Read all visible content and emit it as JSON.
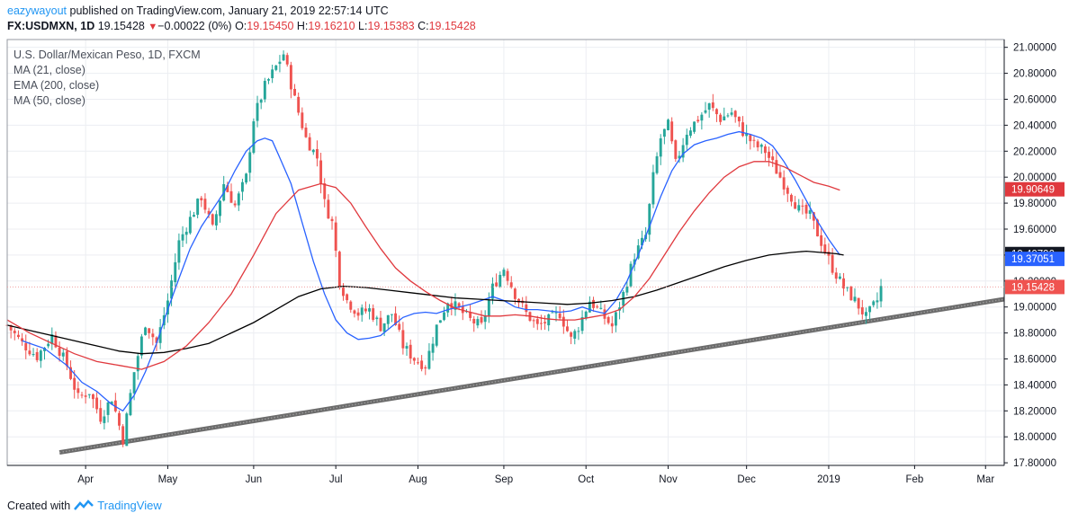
{
  "header": {
    "author": "eazywayout",
    "published_text": "published on TradingView.com, January 21, 2019 22:57:14 UTC",
    "symbol": "FX:USDMXN, 1D",
    "last": "19.15428",
    "change": "−0.00022 (0%)",
    "open_label": "O:",
    "open": "19.15450",
    "high_label": "H:",
    "high": "19.16210",
    "low_label": "L:",
    "low": "19.15383",
    "close_label": "C:",
    "close": "19.15428"
  },
  "legend": {
    "title": "U.S. Dollar/Mexican Peso, 1D, FXCM",
    "items": [
      "MA (21, close)",
      "EMA (200, close)",
      "MA (50, close)"
    ]
  },
  "footer": {
    "created_with": "Created with",
    "brand": "TradingView"
  },
  "chart_data": {
    "type": "candlestick",
    "y_axis": {
      "ticks": [
        17.8,
        18.0,
        18.2,
        18.4,
        18.6,
        18.8,
        19.0,
        19.2,
        19.4,
        19.6,
        19.8,
        20.0,
        20.2,
        20.4,
        20.6,
        20.8,
        21.0
      ],
      "tick_labels": [
        "17.80000",
        "18.00000",
        "18.20000",
        "18.40000",
        "18.60000",
        "18.80000",
        "19.00000",
        "19.20000",
        "19.40000",
        "19.60000",
        "19.80000",
        "20.00000",
        "20.20000",
        "20.40000",
        "20.60000",
        "20.80000",
        "21.00000"
      ],
      "range": [
        17.78,
        21.06
      ]
    },
    "x_axis": {
      "labels": [
        "Apr",
        "May",
        "Jun",
        "Jul",
        "Aug",
        "Sep",
        "Oct",
        "Nov",
        "Dec",
        "2019",
        "Feb",
        "Mar"
      ],
      "label_day_index": [
        21,
        43,
        66,
        88,
        110,
        133,
        155,
        177,
        198,
        220,
        243,
        262
      ],
      "range_days": [
        0,
        267
      ]
    },
    "price_labels": [
      {
        "value": 19.90649,
        "text": "19.90649",
        "color": "#e0393e"
      },
      {
        "value": 19.4079,
        "text": "19.40790",
        "color": "#131722"
      },
      {
        "value": 19.37051,
        "text": "19.37051",
        "color": "#2962ff"
      },
      {
        "value": 19.15428,
        "text": "19.15428",
        "color": "#ef5350"
      }
    ],
    "trendline": {
      "start": {
        "day": 14,
        "value": 17.88
      },
      "end": {
        "day": 267,
        "value": 19.06
      },
      "color": "#6b6b6b"
    },
    "close_anchors": [
      [
        0,
        18.86
      ],
      [
        4,
        18.72
      ],
      [
        8,
        18.62
      ],
      [
        12,
        18.78
      ],
      [
        16,
        18.55
      ],
      [
        19,
        18.3
      ],
      [
        22,
        18.35
      ],
      [
        25,
        18.15
      ],
      [
        28,
        18.3
      ],
      [
        31,
        17.98
      ],
      [
        34,
        18.5
      ],
      [
        37,
        18.88
      ],
      [
        40,
        18.72
      ],
      [
        43,
        19.05
      ],
      [
        46,
        19.5
      ],
      [
        49,
        19.68
      ],
      [
        52,
        19.85
      ],
      [
        55,
        19.6
      ],
      [
        58,
        19.95
      ],
      [
        61,
        19.78
      ],
      [
        64,
        20.0
      ],
      [
        66,
        20.45
      ],
      [
        69,
        20.7
      ],
      [
        72,
        20.85
      ],
      [
        74,
        20.95
      ],
      [
        77,
        20.6
      ],
      [
        80,
        20.3
      ],
      [
        83,
        20.15
      ],
      [
        85,
        19.8
      ],
      [
        87,
        19.65
      ],
      [
        89,
        19.2
      ],
      [
        91,
        19.05
      ],
      [
        94,
        18.95
      ],
      [
        97,
        18.98
      ],
      [
        100,
        18.85
      ],
      [
        103,
        18.95
      ],
      [
        106,
        18.7
      ],
      [
        109,
        18.6
      ],
      [
        112,
        18.55
      ],
      [
        115,
        18.85
      ],
      [
        118,
        19.05
      ],
      [
        121,
        18.98
      ],
      [
        124,
        18.9
      ],
      [
        127,
        18.85
      ],
      [
        130,
        19.15
      ],
      [
        133,
        19.3
      ],
      [
        136,
        19.1
      ],
      [
        139,
        18.95
      ],
      [
        142,
        18.85
      ],
      [
        145,
        18.9
      ],
      [
        148,
        18.95
      ],
      [
        151,
        18.75
      ],
      [
        153,
        18.85
      ],
      [
        156,
        19.05
      ],
      [
        159,
        18.95
      ],
      [
        162,
        18.85
      ],
      [
        165,
        19.1
      ],
      [
        168,
        19.4
      ],
      [
        171,
        19.55
      ],
      [
        173,
        20.0
      ],
      [
        175,
        20.3
      ],
      [
        177,
        20.4
      ],
      [
        179,
        20.1
      ],
      [
        182,
        20.35
      ],
      [
        185,
        20.45
      ],
      [
        188,
        20.55
      ],
      [
        191,
        20.45
      ],
      [
        194,
        20.5
      ],
      [
        197,
        20.35
      ],
      [
        200,
        20.25
      ],
      [
        203,
        20.2
      ],
      [
        206,
        20.05
      ],
      [
        209,
        19.9
      ],
      [
        212,
        19.75
      ],
      [
        215,
        19.7
      ],
      [
        218,
        19.5
      ],
      [
        221,
        19.3
      ],
      [
        224,
        19.15
      ],
      [
        227,
        19.05
      ],
      [
        230,
        18.92
      ],
      [
        233,
        19.05
      ],
      [
        234,
        19.15
      ]
    ],
    "series": [
      {
        "name": "MA (21, close)",
        "color": "#2962ff",
        "points": [
          [
            4,
            18.74
          ],
          [
            10,
            18.68
          ],
          [
            16,
            18.55
          ],
          [
            20,
            18.42
          ],
          [
            24,
            18.35
          ],
          [
            28,
            18.25
          ],
          [
            31,
            18.2
          ],
          [
            34,
            18.32
          ],
          [
            37,
            18.5
          ],
          [
            40,
            18.72
          ],
          [
            43,
            18.98
          ],
          [
            46,
            19.22
          ],
          [
            49,
            19.45
          ],
          [
            52,
            19.62
          ],
          [
            55,
            19.75
          ],
          [
            58,
            19.88
          ],
          [
            61,
            20.05
          ],
          [
            64,
            20.2
          ],
          [
            67,
            20.28
          ],
          [
            69,
            20.3
          ],
          [
            71,
            20.28
          ],
          [
            73,
            20.15
          ],
          [
            76,
            19.95
          ],
          [
            79,
            19.65
          ],
          [
            82,
            19.35
          ],
          [
            85,
            19.1
          ],
          [
            88,
            18.9
          ],
          [
            91,
            18.8
          ],
          [
            94,
            18.75
          ],
          [
            97,
            18.76
          ],
          [
            100,
            18.78
          ],
          [
            103,
            18.85
          ],
          [
            106,
            18.92
          ],
          [
            109,
            18.95
          ],
          [
            112,
            18.96
          ],
          [
            115,
            18.95
          ],
          [
            118,
            18.98
          ],
          [
            121,
            19.0
          ],
          [
            124,
            19.02
          ],
          [
            127,
            19.05
          ],
          [
            130,
            19.08
          ],
          [
            133,
            19.05
          ],
          [
            136,
            19.0
          ],
          [
            139,
            18.98
          ],
          [
            142,
            18.98
          ],
          [
            145,
            18.97
          ],
          [
            148,
            18.96
          ],
          [
            151,
            18.97
          ],
          [
            154,
            19.0
          ],
          [
            157,
            18.97
          ],
          [
            160,
            18.95
          ],
          [
            163,
            19.05
          ],
          [
            166,
            19.2
          ],
          [
            169,
            19.4
          ],
          [
            172,
            19.62
          ],
          [
            175,
            19.85
          ],
          [
            178,
            20.05
          ],
          [
            181,
            20.18
          ],
          [
            184,
            20.25
          ],
          [
            187,
            20.28
          ],
          [
            190,
            20.3
          ],
          [
            193,
            20.33
          ],
          [
            196,
            20.35
          ],
          [
            199,
            20.33
          ],
          [
            202,
            20.3
          ],
          [
            205,
            20.24
          ],
          [
            208,
            20.12
          ],
          [
            211,
            19.98
          ],
          [
            214,
            19.82
          ],
          [
            217,
            19.66
          ],
          [
            220,
            19.52
          ],
          [
            223,
            19.4
          ]
        ]
      },
      {
        "name": "EMA (200, close)",
        "color": "#000000",
        "points": [
          [
            0,
            18.86
          ],
          [
            6,
            18.82
          ],
          [
            12,
            18.78
          ],
          [
            18,
            18.74
          ],
          [
            24,
            18.7
          ],
          [
            30,
            18.66
          ],
          [
            36,
            18.64
          ],
          [
            42,
            18.65
          ],
          [
            48,
            18.68
          ],
          [
            54,
            18.72
          ],
          [
            60,
            18.8
          ],
          [
            66,
            18.88
          ],
          [
            72,
            18.98
          ],
          [
            78,
            19.08
          ],
          [
            84,
            19.14
          ],
          [
            90,
            19.16
          ],
          [
            96,
            19.15
          ],
          [
            102,
            19.13
          ],
          [
            108,
            19.11
          ],
          [
            114,
            19.09
          ],
          [
            120,
            19.07
          ],
          [
            126,
            19.06
          ],
          [
            132,
            19.05
          ],
          [
            138,
            19.04
          ],
          [
            144,
            19.03
          ],
          [
            150,
            19.02
          ],
          [
            156,
            19.03
          ],
          [
            162,
            19.05
          ],
          [
            168,
            19.08
          ],
          [
            174,
            19.13
          ],
          [
            180,
            19.19
          ],
          [
            186,
            19.25
          ],
          [
            192,
            19.31
          ],
          [
            198,
            19.36
          ],
          [
            204,
            19.4
          ],
          [
            210,
            19.42
          ],
          [
            214,
            19.43
          ],
          [
            218,
            19.42
          ],
          [
            222,
            19.41
          ],
          [
            224,
            19.4
          ]
        ]
      },
      {
        "name": "MA (50, close)",
        "color": "#e0393e",
        "points": [
          [
            0,
            18.9
          ],
          [
            6,
            18.8
          ],
          [
            12,
            18.72
          ],
          [
            18,
            18.64
          ],
          [
            24,
            18.58
          ],
          [
            30,
            18.55
          ],
          [
            36,
            18.52
          ],
          [
            42,
            18.58
          ],
          [
            48,
            18.7
          ],
          [
            54,
            18.88
          ],
          [
            60,
            19.1
          ],
          [
            66,
            19.4
          ],
          [
            72,
            19.72
          ],
          [
            78,
            19.9
          ],
          [
            84,
            19.95
          ],
          [
            88,
            19.92
          ],
          [
            92,
            19.8
          ],
          [
            96,
            19.62
          ],
          [
            100,
            19.45
          ],
          [
            104,
            19.3
          ],
          [
            108,
            19.2
          ],
          [
            112,
            19.12
          ],
          [
            116,
            19.05
          ],
          [
            120,
            18.99
          ],
          [
            124,
            18.96
          ],
          [
            128,
            18.93
          ],
          [
            132,
            18.93
          ],
          [
            136,
            18.94
          ],
          [
            140,
            18.93
          ],
          [
            144,
            18.91
          ],
          [
            148,
            18.9
          ],
          [
            152,
            18.9
          ],
          [
            156,
            18.92
          ],
          [
            160,
            18.94
          ],
          [
            164,
            18.98
          ],
          [
            168,
            19.08
          ],
          [
            172,
            19.22
          ],
          [
            176,
            19.4
          ],
          [
            180,
            19.58
          ],
          [
            184,
            19.74
          ],
          [
            188,
            19.88
          ],
          [
            192,
            20.0
          ],
          [
            196,
            20.08
          ],
          [
            200,
            20.12
          ],
          [
            204,
            20.12
          ],
          [
            208,
            20.08
          ],
          [
            212,
            20.02
          ],
          [
            216,
            19.96
          ],
          [
            220,
            19.93
          ],
          [
            223,
            19.9
          ]
        ]
      }
    ]
  },
  "colors": {
    "up": "#26a69a",
    "down": "#ef5350",
    "grid": "#eceef2",
    "axis_text": "#131722"
  }
}
